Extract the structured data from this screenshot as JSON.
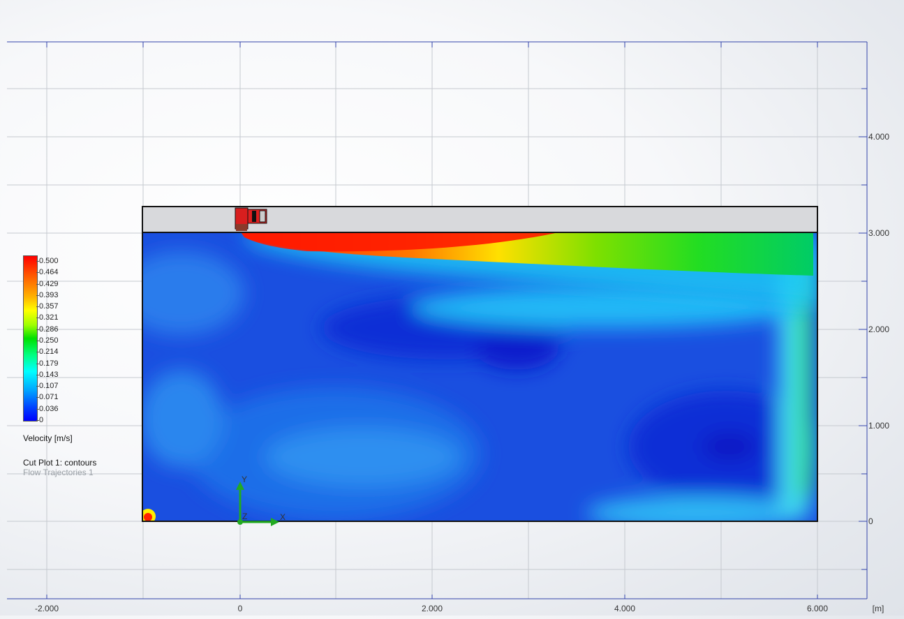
{
  "axes": {
    "x_unit": "[m]",
    "x_ticks": [
      "-2.000",
      "0",
      "2.000",
      "4.000",
      "6.000"
    ],
    "y_ticks": [
      "4.000",
      "3.000",
      "2.000",
      "1.000",
      "0"
    ]
  },
  "triad": {
    "y": "Y",
    "x": "X",
    "z": "Z"
  },
  "legend": {
    "values": [
      "0.500",
      "0.464",
      "0.429",
      "0.393",
      "0.357",
      "0.321",
      "0.286",
      "0.250",
      "0.214",
      "0.179",
      "0.143",
      "0.107",
      "0.071",
      "0.036",
      "0"
    ],
    "title": "Velocity [m/s]",
    "cut_plot": "Cut Plot 1: contours",
    "flow_traj": "Flow Trajectories 1"
  },
  "colors": {
    "grid": "#c5c9cf",
    "frame": "#3344aa",
    "max": "#ff0000",
    "min": "#0000ff"
  }
}
